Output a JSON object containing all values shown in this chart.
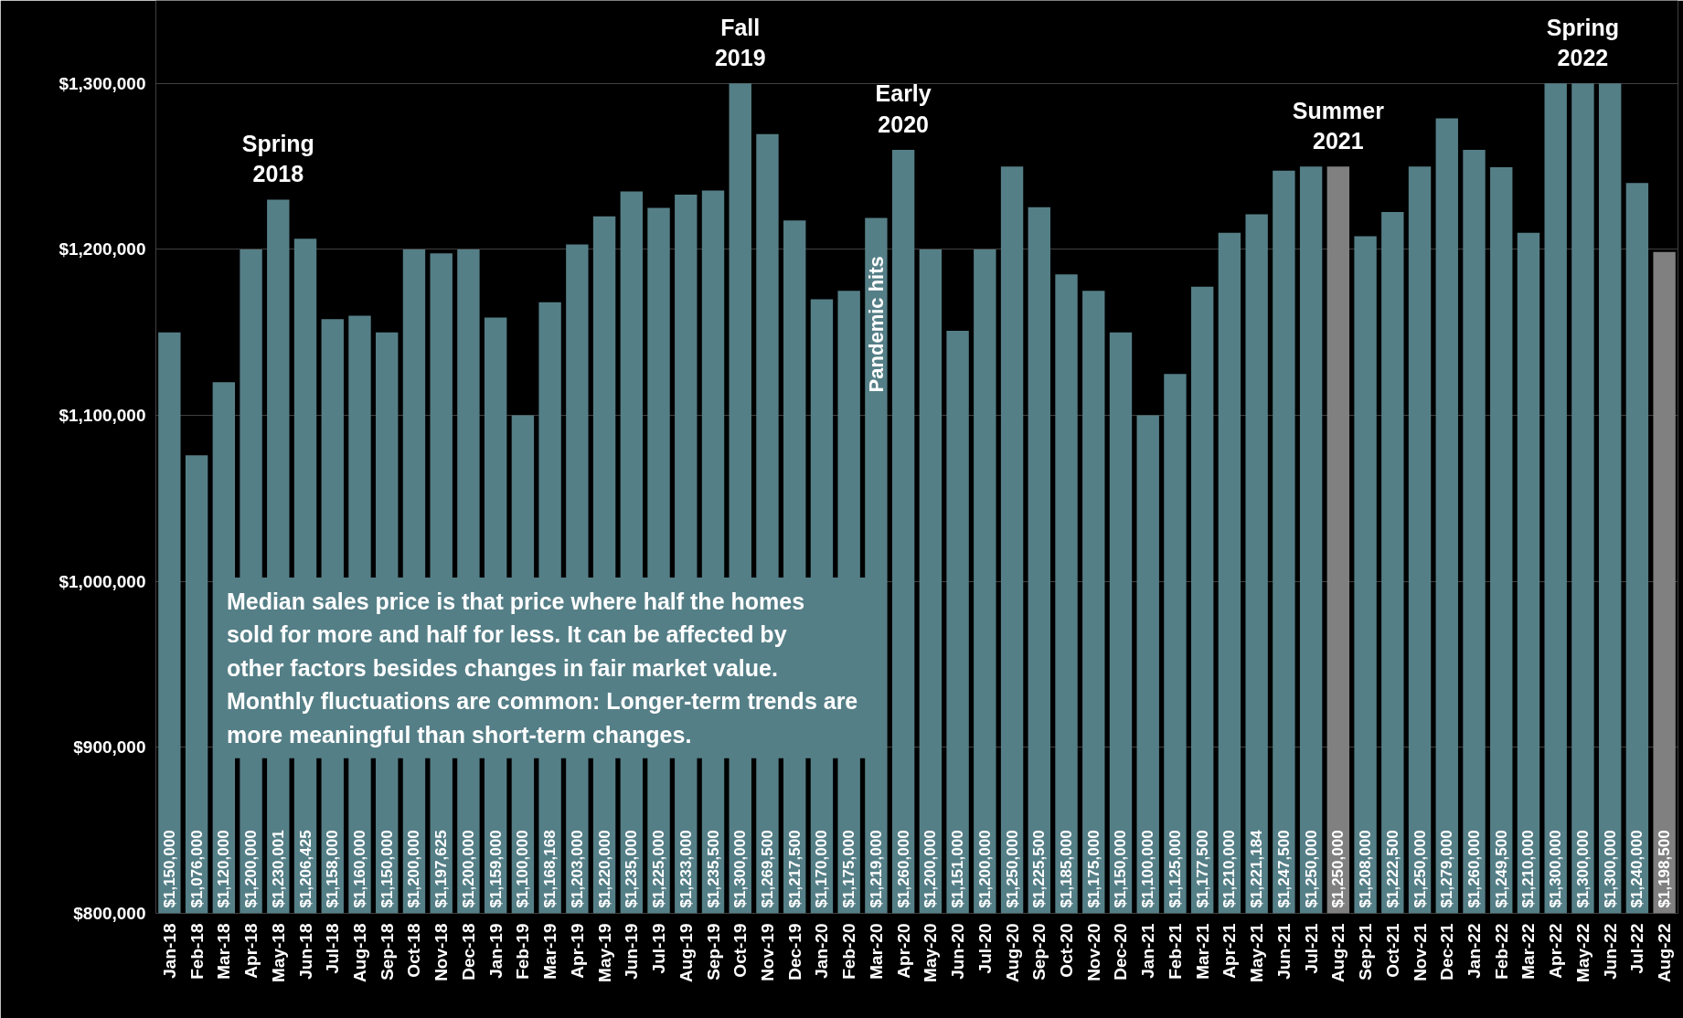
{
  "chart_data": {
    "type": "bar",
    "categories": [
      "Jan-18",
      "Feb-18",
      "Mar-18",
      "Apr-18",
      "May-18",
      "Jun-18",
      "Jul-18",
      "Aug-18",
      "Sep-18",
      "Oct-18",
      "Nov-18",
      "Dec-18",
      "Jan-19",
      "Feb-19",
      "Mar-19",
      "Apr-19",
      "May-19",
      "Jun-19",
      "Jul-19",
      "Aug-19",
      "Sep-19",
      "Oct-19",
      "Nov-19",
      "Dec-19",
      "Jan-20",
      "Feb-20",
      "Mar-20",
      "Apr-20",
      "May-20",
      "Jun-20",
      "Jul-20",
      "Aug-20",
      "Sep-20",
      "Oct-20",
      "Nov-20",
      "Dec-20",
      "Jan-21",
      "Feb-21",
      "Mar-21",
      "Apr-21",
      "May-21",
      "Jun-21",
      "Jul-21",
      "Aug-21",
      "Sep-21",
      "Oct-21",
      "Nov-21",
      "Dec-21",
      "Jan-22",
      "Feb-22",
      "Mar-22",
      "Apr-22",
      "May-22",
      "Jun-22",
      "Jul-22",
      "Aug-22"
    ],
    "values": [
      1150000,
      1076000,
      1120000,
      1200000,
      1230001,
      1206425,
      1158000,
      1160000,
      1150000,
      1200000,
      1197625,
      1200000,
      1159000,
      1100000,
      1168168,
      1203000,
      1220000,
      1235000,
      1225000,
      1233000,
      1235500,
      1300000,
      1269500,
      1217500,
      1170000,
      1175000,
      1219000,
      1260000,
      1200000,
      1151000,
      1200000,
      1250000,
      1225500,
      1185000,
      1175000,
      1150000,
      1100000,
      1125000,
      1177500,
      1210000,
      1221184,
      1247500,
      1250000,
      1250000,
      1208000,
      1222500,
      1250000,
      1279000,
      1260000,
      1249500,
      1210000,
      1300000,
      1300000,
      1300000,
      1240000,
      1198500
    ],
    "value_labels": [
      "$1,150,000",
      "$1,076,000",
      "$1,120,000",
      "$1,200,000",
      "$1,230,001",
      "$1,206,425",
      "$1,158,000",
      "$1,160,000",
      "$1,150,000",
      "$1,200,000",
      "$1,197,625",
      "$1,200,000",
      "$1,159,000",
      "$1,100,000",
      "$1,168,168",
      "$1,203,000",
      "$1,220,000",
      "$1,235,000",
      "$1,225,000",
      "$1,233,000",
      "$1,235,500",
      "$1,300,000",
      "$1,269,500",
      "$1,217,500",
      "$1,170,000",
      "$1,175,000",
      "$1,219,000",
      "$1,260,000",
      "$1,200,000",
      "$1,151,000",
      "$1,200,000",
      "$1,250,000",
      "$1,225,500",
      "$1,185,000",
      "$1,175,000",
      "$1,150,000",
      "$1,100,000",
      "$1,125,000",
      "$1,177,500",
      "$1,210,000",
      "$1,221,184",
      "$1,247,500",
      "$1,250,000",
      "$1,250,000",
      "$1,208,000",
      "$1,222,500",
      "$1,250,000",
      "$1,279,000",
      "$1,260,000",
      "$1,249,500",
      "$1,210,000",
      "$1,300,000",
      "$1,300,000",
      "$1,300,000",
      "$1,240,000",
      "$1,198,500"
    ],
    "colors": [
      "#557f87",
      "#557f87",
      "#557f87",
      "#557f87",
      "#557f87",
      "#557f87",
      "#557f87",
      "#557f87",
      "#557f87",
      "#557f87",
      "#557f87",
      "#557f87",
      "#557f87",
      "#557f87",
      "#557f87",
      "#557f87",
      "#557f87",
      "#557f87",
      "#557f87",
      "#557f87",
      "#557f87",
      "#557f87",
      "#557f87",
      "#557f87",
      "#557f87",
      "#557f87",
      "#557f87",
      "#557f87",
      "#557f87",
      "#557f87",
      "#557f87",
      "#557f87",
      "#557f87",
      "#557f87",
      "#557f87",
      "#557f87",
      "#557f87",
      "#557f87",
      "#557f87",
      "#557f87",
      "#557f87",
      "#557f87",
      "#557f87",
      "#808080",
      "#557f87",
      "#557f87",
      "#557f87",
      "#557f87",
      "#557f87",
      "#557f87",
      "#557f87",
      "#557f87",
      "#557f87",
      "#557f87",
      "#557f87",
      "#808080"
    ],
    "ylim": [
      800000,
      1350000
    ],
    "yticks": [
      {
        "value": 800000,
        "label": "$800,000"
      },
      {
        "value": 900000,
        "label": "$900,000"
      },
      {
        "value": 1000000,
        "label": "$1,000,000"
      },
      {
        "value": 1100000,
        "label": "$1,100,000"
      },
      {
        "value": 1200000,
        "label": "$1,200,000"
      },
      {
        "value": 1300000,
        "label": "$1,300,000"
      }
    ],
    "grid": "y",
    "annotations": [
      {
        "text": "Spring\n2018",
        "x": "May-18",
        "y": 1230001
      },
      {
        "text": "Fall\n2019",
        "x": "Oct-19",
        "y": 1300000
      },
      {
        "text": "Early\n2020",
        "x": "Apr-20",
        "y": 1260000
      },
      {
        "text": "Summer\n2021",
        "x": "Aug-21",
        "y": 1250000
      },
      {
        "text": "Spring\n2022",
        "x": "May-22",
        "y": 1300000
      },
      "Pandemic hits",
      "Median sales price is that price where half the homes sold for more and half for less. It can be affected by other factors besides changes in fair market value. Monthly fluctuations are common: Longer-term trends are more meaningful than short-term changes."
    ]
  }
}
